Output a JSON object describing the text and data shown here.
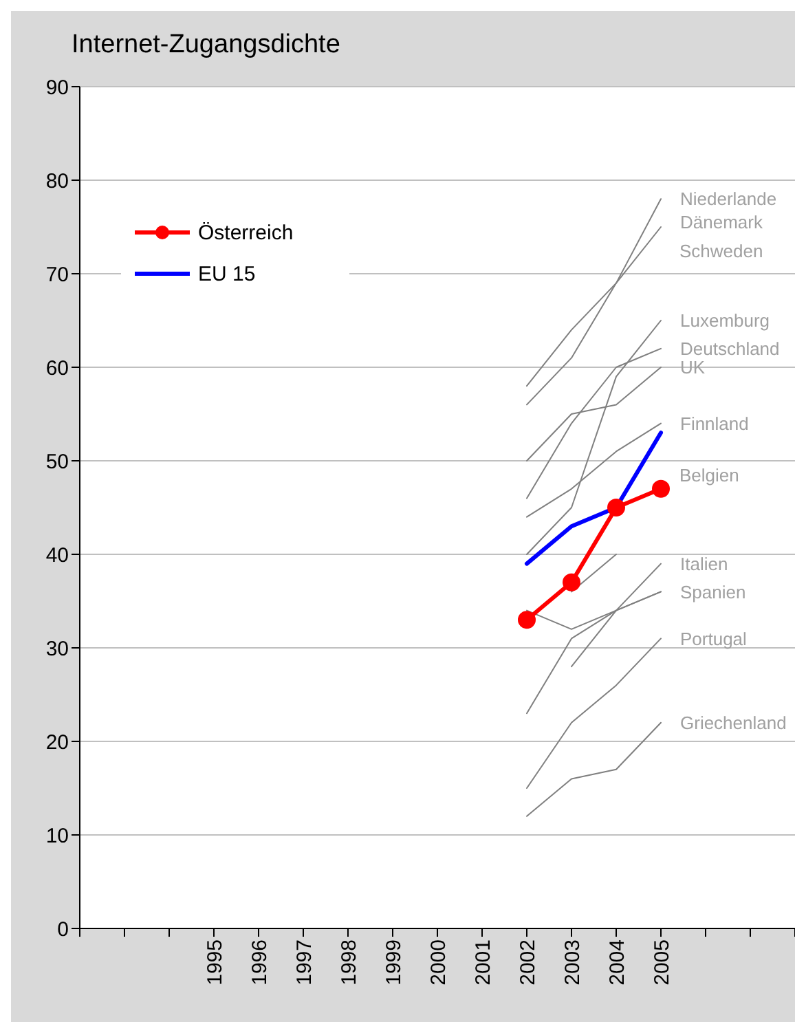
{
  "chart_data": {
    "type": "line",
    "title": "Internet-Zugangsdichte",
    "categories": [
      null,
      null,
      null,
      "1995",
      "1996",
      "1997",
      "1998",
      "1999",
      "2000",
      "2001",
      "2002",
      "2003",
      "2004",
      "2005",
      null,
      null,
      null
    ],
    "ylim": [
      0,
      90
    ],
    "yticks": [
      0,
      10,
      20,
      30,
      40,
      50,
      60,
      70,
      80,
      90
    ],
    "grid": "y",
    "legend": "top left",
    "line_style": "solid",
    "marker": "none",
    "series": [
      {
        "color": "#808080",
        "values": [
          null,
          null,
          null,
          null,
          null,
          null,
          null,
          null,
          null,
          null,
          56,
          61,
          69,
          78,
          null,
          null,
          null
        ]
      },
      {
        "color": "#808080",
        "values": [
          null,
          null,
          null,
          null,
          null,
          null,
          null,
          null,
          null,
          null,
          58,
          64,
          69,
          75,
          null,
          null,
          null
        ]
      },
      {
        "color": "#808080",
        "values": [
          null,
          null,
          null,
          null,
          null,
          null,
          null,
          null,
          null,
          null,
          50,
          55,
          56,
          60,
          null,
          null,
          null
        ]
      },
      {
        "color": "#808080",
        "values": [
          null,
          null,
          null,
          null,
          null,
          null,
          null,
          null,
          null,
          null,
          46,
          54,
          60,
          62,
          null,
          null,
          null
        ]
      },
      {
        "color": "#808080",
        "values": [
          null,
          null,
          null,
          null,
          null,
          null,
          null,
          null,
          null,
          null,
          40,
          45,
          59,
          65,
          null,
          null,
          null
        ]
      },
      {
        "color": "#808080",
        "values": [
          null,
          null,
          null,
          null,
          null,
          null,
          null,
          null,
          null,
          null,
          44,
          47,
          51,
          54,
          null,
          null,
          null
        ]
      },
      {
        "color": "#808080",
        "values": [
          null,
          null,
          null,
          null,
          null,
          null,
          null,
          null,
          null,
          null,
          null,
          36,
          40,
          null,
          null,
          null,
          null
        ]
      },
      {
        "color": "#808080",
        "values": [
          null,
          null,
          null,
          null,
          null,
          null,
          null,
          null,
          null,
          null,
          34,
          32,
          34,
          36,
          null,
          null,
          null
        ]
      },
      {
        "color": "#808080",
        "values": [
          null,
          null,
          null,
          null,
          null,
          null,
          null,
          null,
          null,
          null,
          23,
          31,
          34,
          36,
          null,
          null,
          null
        ]
      },
      {
        "color": "#808080",
        "values": [
          null,
          null,
          null,
          null,
          null,
          null,
          null,
          null,
          null,
          null,
          null,
          28,
          34,
          39,
          null,
          null,
          null
        ]
      },
      {
        "color": "#808080",
        "values": [
          null,
          null,
          null,
          null,
          null,
          null,
          null,
          null,
          null,
          null,
          15,
          22,
          26,
          31,
          null,
          null,
          null
        ]
      },
      {
        "color": "#808080",
        "values": [
          null,
          null,
          null,
          null,
          null,
          null,
          null,
          null,
          null,
          null,
          12,
          16,
          17,
          22,
          null,
          null,
          null
        ]
      },
      {
        "name": "Österreich",
        "color": "#ff0000",
        "marker": "circle",
        "values": [
          null,
          null,
          null,
          null,
          null,
          null,
          null,
          null,
          null,
          null,
          33,
          37,
          45,
          47,
          null,
          null,
          null
        ]
      },
      {
        "name": "EU 15",
        "color": "#0000ff",
        "values": [
          null,
          null,
          null,
          null,
          null,
          null,
          null,
          null,
          null,
          null,
          39,
          43,
          45,
          53,
          null,
          null,
          null
        ]
      }
    ],
    "annotations": [
      {
        "text": "Niederlande",
        "x": "2005",
        "y": 78
      },
      {
        "text": "Dänemark",
        "x": "2005",
        "y": 75.5
      },
      "Schweden",
      {
        "text": "Luxemburg",
        "x": "2005",
        "y": 65
      },
      {
        "text": "Deutschland",
        "x": "2005",
        "y": 62
      },
      {
        "text": "UK",
        "x": "2005",
        "y": 60
      },
      {
        "text": "Finnland",
        "x": "2005",
        "y": 54
      },
      "Belgien",
      {
        "text": "Italien",
        "x": "2005",
        "y": 39
      },
      {
        "text": "Spanien",
        "x": "2005",
        "y": 36
      },
      {
        "text": "Portugal",
        "x": "2005",
        "y": 31
      },
      {
        "text": "Griechenland",
        "x": "2005",
        "y": 22
      }
    ]
  }
}
